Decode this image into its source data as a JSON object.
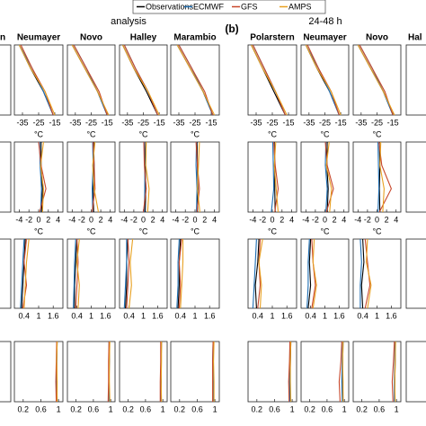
{
  "chart_data": {
    "type": "line",
    "panel_label": "(b)",
    "group_titles": [
      "analysis",
      "24-48 h"
    ],
    "cropped_labels": [
      "n",
      "Hal"
    ],
    "series": [
      {
        "name": "Observations",
        "color": "#000000"
      },
      {
        "name": "ECMWF",
        "color": "#1f6fb4"
      },
      {
        "name": "GFS",
        "color": "#c8472b"
      },
      {
        "name": "AMPS",
        "color": "#e8a020"
      }
    ],
    "levels": [
      0,
      1,
      2,
      3
    ],
    "ylim": [
      0,
      3
    ],
    "stations": [
      "Neumayer",
      "Novo",
      "Halley",
      "Marambio",
      "Polarstern",
      "Neumayer",
      "Novo"
    ],
    "rows": [
      {
        "xlim": [
          -40,
          -10
        ],
        "xticks": [
          -35,
          -25,
          -15
        ],
        "unit": "°C",
        "panels": [
          [
            [
              -16,
              -22,
              -30,
              -37
            ],
            [
              -16,
              -22,
              -29,
              -37
            ],
            [
              -16,
              -21,
              -29,
              -36
            ],
            [
              -15,
              -21,
              -30,
              -37
            ]
          ],
          [
            [
              -15,
              -21,
              -29,
              -37
            ],
            [
              -15,
              -21,
              -28,
              -36
            ],
            [
              -15,
              -20,
              -28,
              -36
            ],
            [
              -14,
              -21,
              -29,
              -37
            ]
          ],
          [
            [
              -16,
              -23,
              -31,
              -38
            ],
            [
              -16,
              -22,
              -30,
              -37
            ],
            [
              -16,
              -22,
              -30,
              -37
            ],
            [
              -15,
              -22,
              -31,
              -38
            ]
          ],
          [
            [
              -14,
              -20,
              -28,
              -36
            ],
            [
              -14,
              -20,
              -27,
              -35
            ],
            [
              -14,
              -19,
              -27,
              -35
            ],
            [
              -13,
              -20,
              -28,
              -36
            ]
          ],
          [
            [
              -17,
              -24,
              -31,
              -38
            ],
            [
              -17,
              -23,
              -30,
              -37
            ],
            [
              -17,
              -23,
              -30,
              -37
            ],
            [
              -16,
              -23,
              -31,
              -38
            ]
          ],
          [
            [
              -16,
              -22,
              -30,
              -37
            ],
            [
              -16,
              -22,
              -29,
              -37
            ],
            [
              -16,
              -21,
              -29,
              -36
            ],
            [
              -15,
              -21,
              -30,
              -37
            ]
          ],
          [
            [
              -15,
              -21,
              -29,
              -37
            ],
            [
              -15,
              -21,
              -28,
              -36
            ],
            [
              -15,
              -20,
              -28,
              -36
            ],
            [
              -14,
              -21,
              -29,
              -37
            ]
          ]
        ]
      },
      {
        "xlim": [
          -5,
          5
        ],
        "xticks": [
          -4,
          -2,
          0,
          2,
          4
        ],
        "unit": "°C",
        "panels": [
          [
            [
              0.6,
              0.8,
              0.5,
              0.5
            ],
            [
              0.4,
              0.6,
              0.3,
              0.2
            ],
            [
              0.2,
              1.5,
              0.5,
              0
            ],
            [
              0.8,
              1,
              0.4,
              1
            ]
          ],
          [
            [
              0.5,
              0.4,
              0.6,
              0.5
            ],
            [
              0.3,
              0.2,
              0.4,
              0.3
            ],
            [
              0.2,
              0.8,
              0.6,
              0.4
            ],
            [
              1.5,
              0.6,
              0.3,
              0.8
            ]
          ],
          [
            [
              0.4,
              0.5,
              0.4,
              0.5
            ],
            [
              0.2,
              0.3,
              0.3,
              0.2
            ],
            [
              0,
              0.6,
              0.2,
              0.1
            ],
            [
              0.9,
              1.2,
              0.5,
              0.6
            ]
          ],
          [
            [
              0.5,
              0.6,
              0.5,
              0.4
            ],
            [
              0.3,
              0.4,
              0.2,
              0.3
            ],
            [
              0.4,
              0.9,
              0.5,
              0.2
            ],
            [
              1,
              0.5,
              0.7,
              0.9
            ]
          ],
          [
            [
              0.6,
              0.5,
              0.5,
              0.4
            ],
            [
              -0.2,
              0.3,
              0.2,
              0.1
            ],
            [
              0.5,
              1.2,
              0.6,
              0.3
            ],
            [
              1.2,
              0.8,
              0.4,
              0.7
            ]
          ],
          [
            [
              0.5,
              0.7,
              0.4,
              0.5
            ],
            [
              0.2,
              0.5,
              0.1,
              0.2
            ],
            [
              0.3,
              1.8,
              0.5,
              0.1
            ],
            [
              1,
              1.4,
              0.3,
              0.9
            ]
          ],
          [
            [
              0.6,
              0.5,
              0.6,
              0.5
            ],
            [
              0.2,
              0.4,
              0.3,
              0.2
            ],
            [
              0.5,
              3,
              1,
              0.4
            ],
            [
              1.2,
              1.5,
              0.6,
              0.8
            ]
          ]
        ]
      },
      {
        "xlim": [
          0,
          2
        ],
        "xticks": [
          0.4,
          1,
          1.6
        ],
        "panels": [
          [
            [
              0.3,
              0.35,
              0.4,
              0.45
            ],
            [
              0.25,
              0.3,
              0.35,
              0.4
            ],
            [
              0.35,
              0.5,
              0.4,
              0.5
            ],
            [
              0.4,
              0.45,
              0.5,
              0.6
            ]
          ],
          [
            [
              0.3,
              0.3,
              0.35,
              0.4
            ],
            [
              0.25,
              0.28,
              0.3,
              0.35
            ],
            [
              0.35,
              0.4,
              0.45,
              0.4
            ],
            [
              0.45,
              0.5,
              0.4,
              0.5
            ]
          ],
          [
            [
              0.25,
              0.3,
              0.3,
              0.35
            ],
            [
              0.2,
              0.25,
              0.3,
              0.3
            ],
            [
              0.3,
              0.35,
              0.4,
              0.35
            ],
            [
              0.4,
              0.5,
              0.45,
              0.55
            ]
          ],
          [
            [
              0.3,
              0.35,
              0.35,
              0.4
            ],
            [
              0.25,
              0.3,
              0.3,
              0.35
            ],
            [
              0.35,
              0.4,
              0.35,
              0.45
            ],
            [
              0.4,
              0.45,
              0.5,
              0.5
            ]
          ],
          [
            [
              0.35,
              0.3,
              0.4,
              0.45
            ],
            [
              0.2,
              0.25,
              0.3,
              0.35
            ],
            [
              0.4,
              0.5,
              0.45,
              0.5
            ],
            [
              0.5,
              0.55,
              0.45,
              0.6
            ]
          ],
          [
            [
              0.3,
              0.4,
              0.35,
              0.4
            ],
            [
              0.25,
              0.3,
              0.3,
              0.35
            ],
            [
              0.45,
              0.6,
              0.5,
              0.45
            ],
            [
              0.5,
              0.65,
              0.5,
              0.55
            ]
          ],
          [
            [
              0.4,
              0.35,
              0.45,
              0.4
            ],
            [
              0.3,
              0.3,
              0.35,
              0.3
            ],
            [
              0.5,
              0.7,
              0.6,
              0.5
            ],
            [
              0.6,
              0.75,
              0.55,
              0.6
            ]
          ]
        ]
      },
      {
        "xlim": [
          0,
          1.1
        ],
        "xticks": [
          0.2,
          0.6,
          1
        ],
        "panels": [
          [
            [
              0.97,
              0.96,
              0.96,
              0.97
            ],
            [
              0.96,
              0.95,
              0.96,
              0.96
            ],
            [
              0.95,
              0.94,
              0.95,
              0.96
            ],
            [
              0.97,
              0.97,
              0.96,
              0.97
            ]
          ],
          [
            [
              0.97,
              0.96,
              0.97,
              0.97
            ],
            [
              0.96,
              0.96,
              0.96,
              0.96
            ],
            [
              0.94,
              0.95,
              0.95,
              0.96
            ],
            [
              0.98,
              0.97,
              0.97,
              0.98
            ]
          ],
          [
            [
              0.96,
              0.96,
              0.96,
              0.97
            ],
            [
              0.95,
              0.95,
              0.96,
              0.96
            ],
            [
              0.94,
              0.94,
              0.95,
              0.95
            ],
            [
              0.97,
              0.96,
              0.97,
              0.97
            ]
          ],
          [
            [
              0.97,
              0.97,
              0.96,
              0.97
            ],
            [
              0.96,
              0.96,
              0.95,
              0.96
            ],
            [
              0.95,
              0.95,
              0.95,
              0.96
            ],
            [
              0.98,
              0.98,
              0.97,
              0.98
            ]
          ],
          [
            [
              0.96,
              0.95,
              0.96,
              0.97
            ],
            [
              0.95,
              0.94,
              0.95,
              0.96
            ],
            [
              0.93,
              0.92,
              0.94,
              0.95
            ],
            [
              0.97,
              0.96,
              0.96,
              0.97
            ]
          ],
          [
            [
              0.97,
              0.96,
              0.96,
              0.97
            ],
            [
              0.95,
              0.94,
              0.95,
              0.96
            ],
            [
              0.9,
              0.88,
              0.92,
              0.94
            ],
            [
              0.97,
              0.97,
              0.96,
              0.97
            ]
          ],
          [
            [
              0.96,
              0.96,
              0.97,
              0.97
            ],
            [
              0.95,
              0.95,
              0.96,
              0.96
            ],
            [
              0.92,
              0.9,
              0.93,
              0.95
            ],
            [
              0.97,
              0.96,
              0.97,
              0.98
            ]
          ]
        ]
      }
    ]
  }
}
